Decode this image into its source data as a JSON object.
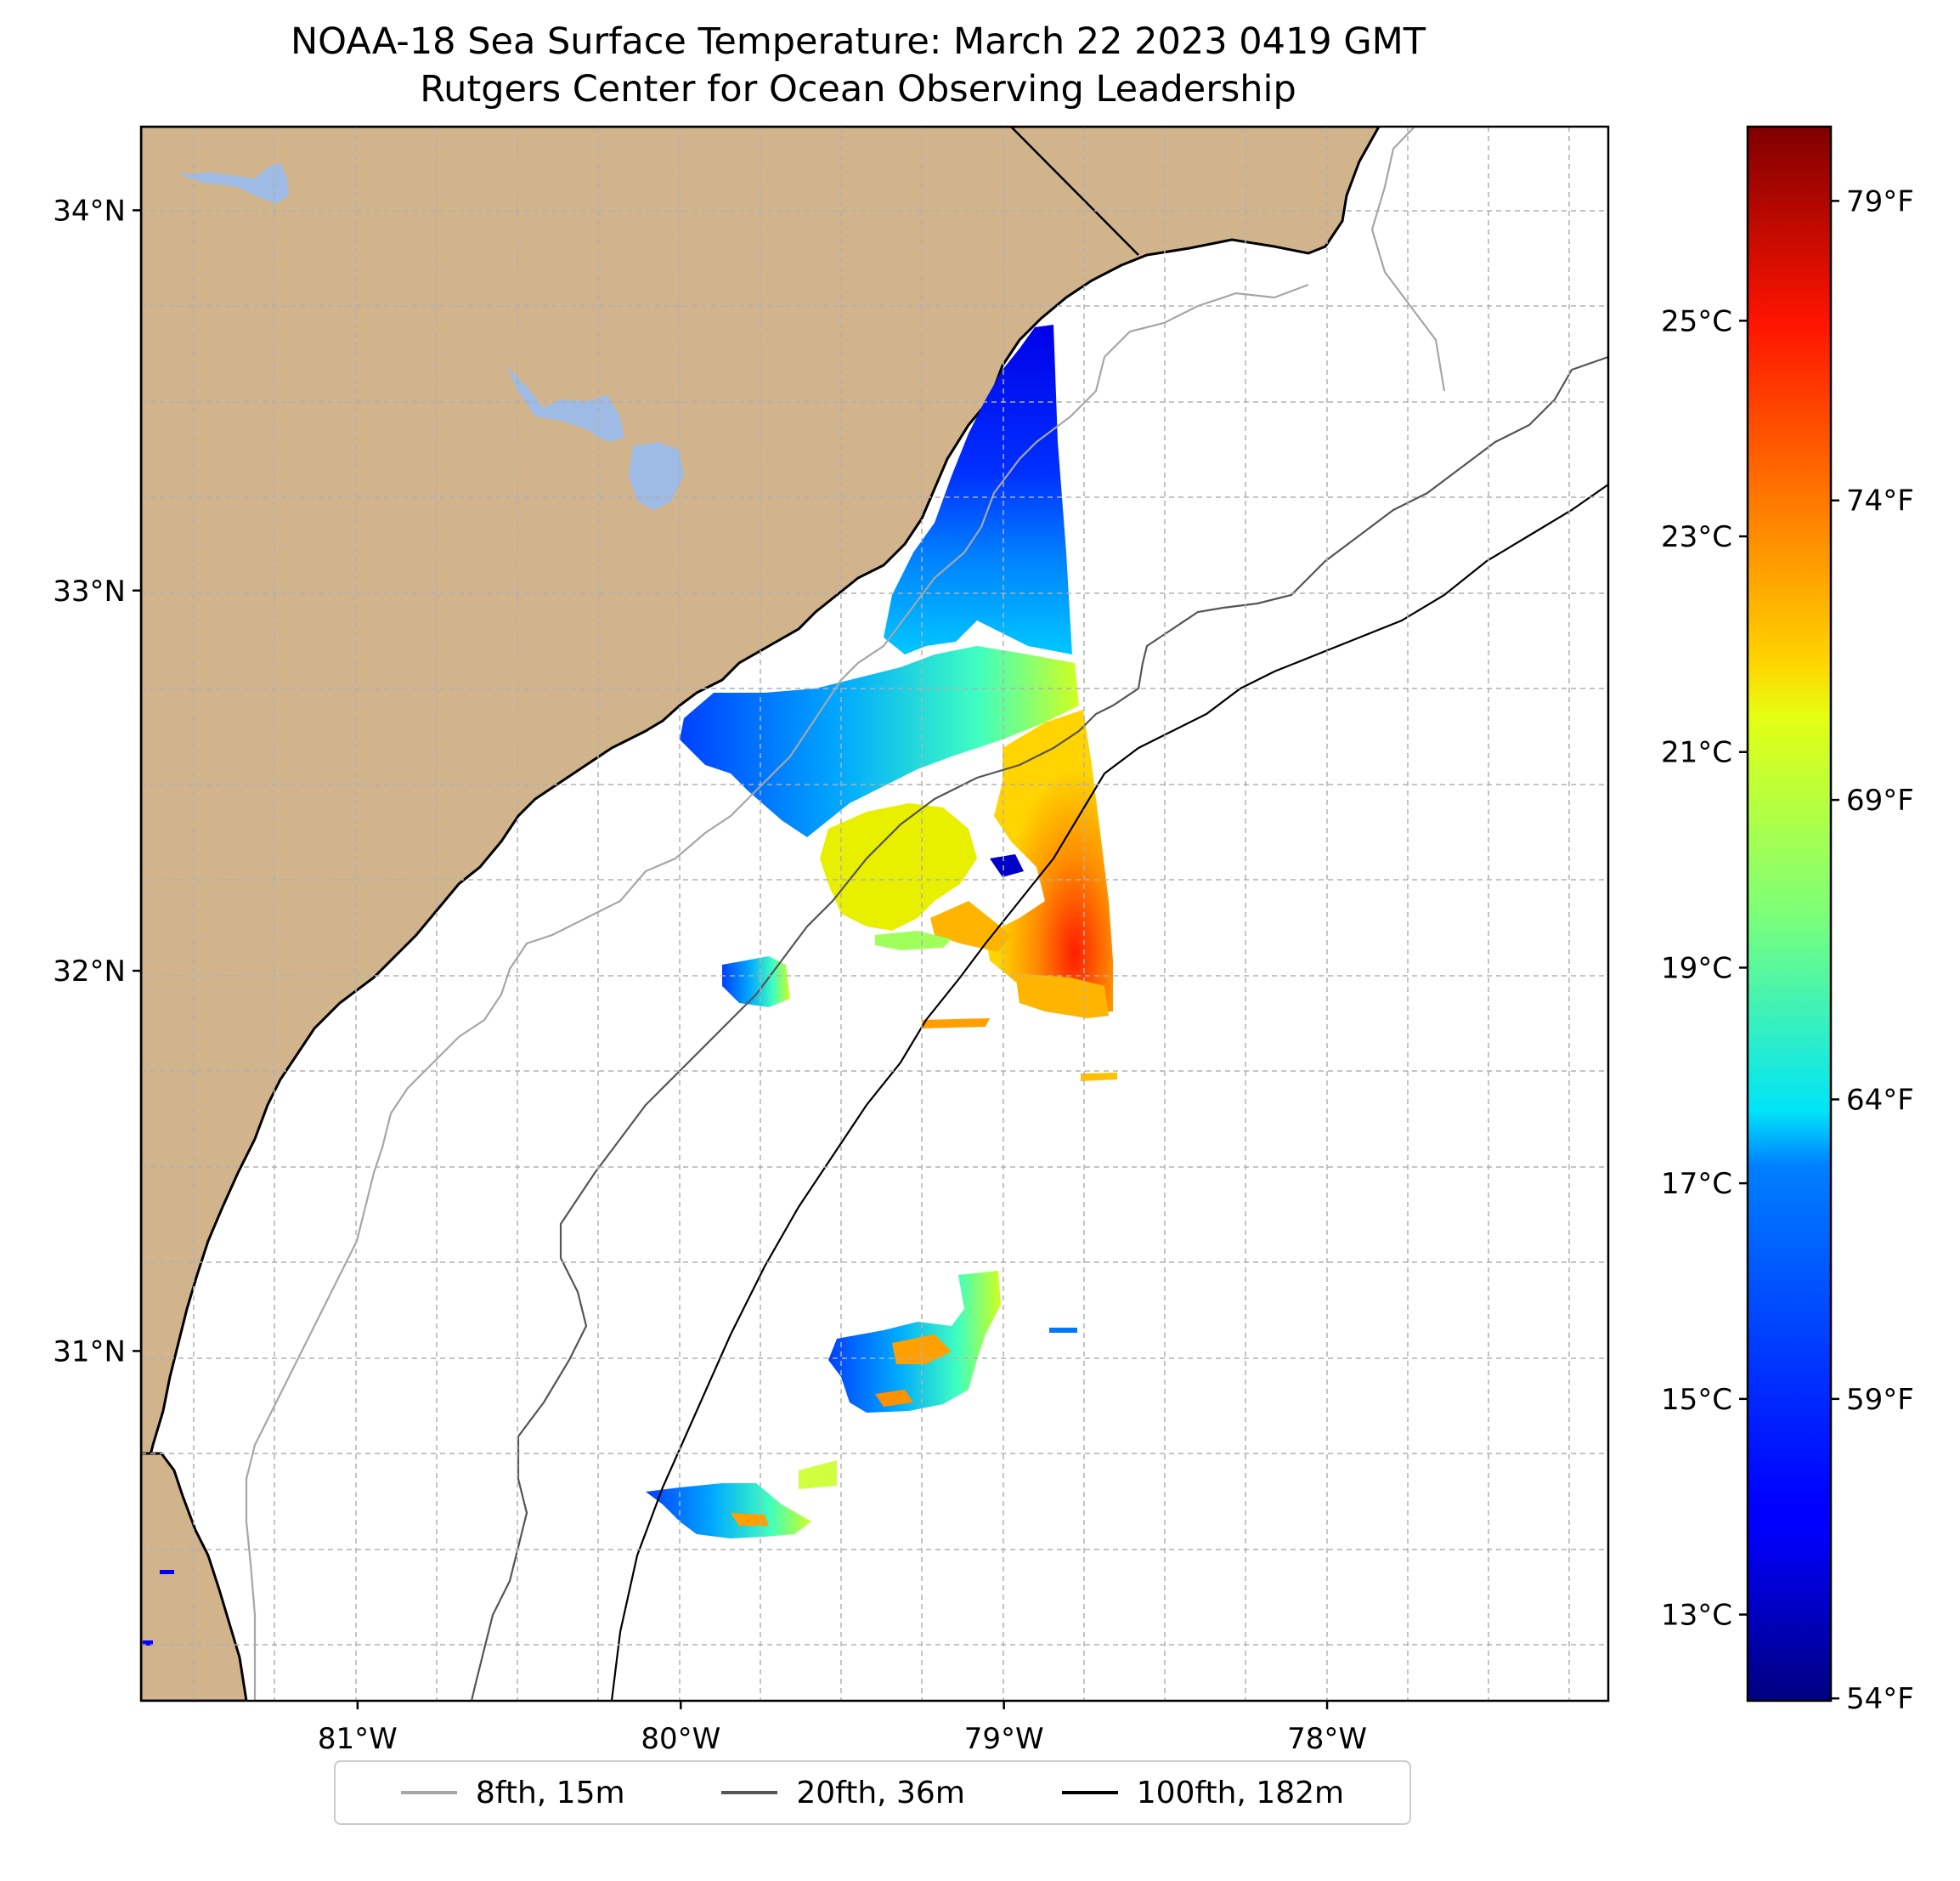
{
  "title_line1": "NOAA-18 Sea Surface Temperature: March 22 2023 0419 GMT",
  "title_line2": "Rutgers Center for Ocean Observing Leadership",
  "map": {
    "lat_labels": [
      "34°N",
      "33°N",
      "32°N",
      "31°N"
    ],
    "lon_labels": [
      "81°W",
      "80°W",
      "79°W",
      "78°W"
    ],
    "lat_values": [
      34,
      33,
      32,
      31
    ],
    "lon_values": [
      -81,
      -80,
      -79,
      -78
    ],
    "lat_range": [
      30.08,
      34.22
    ],
    "lon_range": [
      -81.67,
      -77.13
    ],
    "land_color": "#d2b48c",
    "lake_color": "#9dbbe4",
    "grid": true
  },
  "colorbar": {
    "celsius_labels": [
      "25°C",
      "23°C",
      "21°C",
      "19°C",
      "17°C",
      "15°C",
      "13°C"
    ],
    "celsius_values": [
      25,
      23,
      21,
      19,
      17,
      15,
      13
    ],
    "fahrenheit_labels": [
      "79°F",
      "74°F",
      "69°F",
      "64°F",
      "59°F",
      "54°F"
    ],
    "fahrenheit_values": [
      79,
      74,
      69,
      64,
      59,
      54
    ],
    "range_celsius": [
      12.2,
      26.8
    ],
    "colormap": "jet"
  },
  "legend": {
    "items": [
      {
        "label": "8fth, 15m",
        "color": "#a6a6a6"
      },
      {
        "label": "20fth, 36m",
        "color": "#555555"
      },
      {
        "label": "100fth, 182m",
        "color": "#000000"
      }
    ]
  }
}
